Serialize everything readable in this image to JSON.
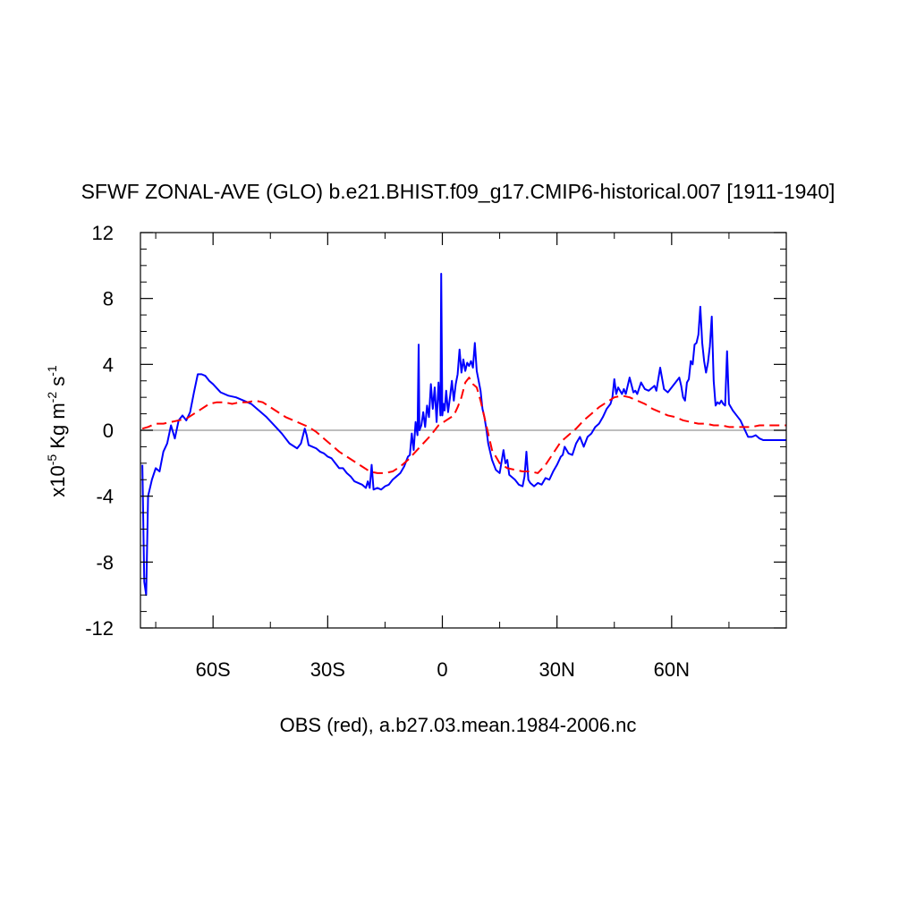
{
  "chart_data": {
    "type": "line",
    "title": "SFWF ZONAL-AVE (GLO) b.e21.BHIST.f09_g17.CMIP6-historical.007 [1911-1940]",
    "xlabel": "OBS (red), a.b27.03.mean.1984-2006.nc",
    "ylabel": {
      "prefix": "x10",
      "exp1": "-5",
      "mid": " Kg m",
      "exp2": "-2",
      "mid2": " s",
      "exp3": "-1"
    },
    "xlim": [
      -79,
      90
    ],
    "ylim": [
      -12,
      12
    ],
    "x_ticks": [
      {
        "value": -60,
        "label": "60S"
      },
      {
        "value": -30,
        "label": "30S"
      },
      {
        "value": 0,
        "label": "0"
      },
      {
        "value": 30,
        "label": "30N"
      },
      {
        "value": 60,
        "label": "60N"
      }
    ],
    "y_ticks": [
      {
        "value": 12,
        "label": "12"
      },
      {
        "value": 8,
        "label": "8"
      },
      {
        "value": 4,
        "label": "4"
      },
      {
        "value": 0,
        "label": "0"
      },
      {
        "value": -4,
        "label": "-4"
      },
      {
        "value": -8,
        "label": "-8"
      },
      {
        "value": -12,
        "label": "-12"
      }
    ],
    "zero_line": true,
    "series": [
      {
        "color": "#0000ff",
        "style": "solid",
        "x": [
          -78.5,
          -78,
          -77.5,
          -77,
          -76,
          -75,
          -74,
          -73,
          -72,
          -71,
          -70,
          -69,
          -68,
          -67,
          -66,
          -65,
          -64,
          -63,
          -62,
          -61,
          -60,
          -58,
          -56,
          -54,
          -52,
          -50,
          -48,
          -46,
          -44,
          -42,
          -40,
          -38,
          -37,
          -36,
          -35.5,
          -35,
          -34,
          -33,
          -32,
          -31,
          -30,
          -29,
          -28,
          -27,
          -26,
          -25,
          -24,
          -23,
          -22,
          -21,
          -20,
          -19.5,
          -19,
          -18.5,
          -18,
          -17,
          -16,
          -15,
          -14,
          -13,
          -12,
          -11,
          -10,
          -9,
          -8.5,
          -8,
          -7.5,
          -7,
          -6.5,
          -6.2,
          -6,
          -5.5,
          -5,
          -4.5,
          -4,
          -3.5,
          -3,
          -2.5,
          -2,
          -1.5,
          -1,
          -0.5,
          -0.3,
          0,
          0.3,
          0.6,
          1,
          1.5,
          2,
          2.5,
          3,
          3.5,
          4,
          4.5,
          5,
          5.5,
          6,
          6.5,
          7,
          7.5,
          8,
          8.5,
          9,
          9.5,
          10,
          10.5,
          11,
          11.5,
          12,
          13,
          14,
          15,
          16,
          16.5,
          17,
          17.5,
          18,
          19,
          20,
          21,
          21.5,
          22,
          22.5,
          23,
          24,
          25,
          26,
          27,
          28,
          29,
          30,
          31,
          31.5,
          32,
          33,
          34,
          35,
          36,
          37,
          38,
          39,
          40,
          41,
          42,
          43,
          44,
          44.5,
          45,
          45.5,
          46,
          47,
          47.5,
          48,
          49,
          50,
          50.5,
          51,
          52,
          53,
          54,
          55,
          55.5,
          56,
          57,
          58,
          59,
          60,
          61,
          62,
          62.5,
          63,
          63.5,
          64,
          64.5,
          65,
          65.5,
          66,
          66.5,
          67,
          67.5,
          68,
          68.5,
          69,
          69.5,
          70,
          70.5,
          71,
          71.5,
          72,
          72.5,
          73,
          73.5,
          74,
          74.5,
          75,
          76,
          77,
          78,
          79,
          80,
          81,
          82,
          83,
          84,
          86,
          88,
          90
        ],
        "y": [
          -2.1,
          -9.2,
          -10,
          -4,
          -3,
          -2.3,
          -2.5,
          -1.3,
          -0.8,
          0.3,
          -0.5,
          0.6,
          0.9,
          0.6,
          1.1,
          2.3,
          3.4,
          3.4,
          3.3,
          3.0,
          2.8,
          2.3,
          2.1,
          2.0,
          1.8,
          1.6,
          1.2,
          0.8,
          0.3,
          -0.2,
          -0.8,
          -1.1,
          -0.8,
          0.1,
          -0.3,
          -0.9,
          -1.0,
          -1.1,
          -1.3,
          -1.4,
          -1.6,
          -1.7,
          -2.0,
          -2.3,
          -2.3,
          -2.6,
          -2.8,
          -3.1,
          -3.2,
          -3.3,
          -3.5,
          -3.1,
          -3.5,
          -2.1,
          -3.6,
          -3.5,
          -3.6,
          -3.4,
          -3.3,
          -3.0,
          -2.8,
          -2.6,
          -2.2,
          -1.6,
          -1.5,
          -0.2,
          -1.2,
          0.5,
          -0.3,
          5.2,
          0.0,
          0.3,
          1.1,
          0.2,
          1.5,
          0.8,
          2.8,
          1.3,
          2.6,
          0.5,
          2.9,
          0.9,
          9.5,
          0.9,
          1.6,
          1.2,
          2.4,
          1.1,
          2.0,
          3.0,
          1.8,
          2.8,
          3.4,
          4.9,
          3.5,
          4.3,
          3.6,
          4.1,
          3.9,
          4.2,
          3.8,
          5.3,
          3.6,
          3.0,
          2.4,
          1.3,
          0.8,
          0.1,
          -0.8,
          -1.8,
          -2.4,
          -2.6,
          -1.2,
          -2.0,
          -1.8,
          -2.7,
          -2.8,
          -3.0,
          -3.3,
          -3.4,
          -2.8,
          -1.3,
          -3.0,
          -3.2,
          -3.4,
          -3.2,
          -3.3,
          -2.9,
          -3.0,
          -2.5,
          -2.1,
          -1.6,
          -1.5,
          -1.0,
          -1.4,
          -1.5,
          -0.8,
          -0.4,
          -1.0,
          -0.4,
          -0.2,
          0.2,
          0.4,
          0.8,
          1.3,
          1.6,
          2.0,
          3.1,
          2.2,
          2.6,
          2.2,
          2.5,
          2.2,
          3.2,
          2.3,
          2.4,
          2.2,
          2.9,
          2.5,
          2.4,
          2.6,
          2.7,
          2.4,
          3.8,
          2.5,
          2.3,
          2.6,
          2.9,
          3.2,
          2.7,
          2.0,
          1.8,
          2.9,
          3.1,
          4.2,
          4.0,
          5.2,
          5.3,
          5.8,
          7.5,
          5.3,
          4.2,
          3.5,
          4.1,
          5.1,
          6.9,
          3.0,
          1.5,
          1.7,
          1.6,
          1.8,
          1.6,
          1.5,
          4.8,
          1.6,
          1.2,
          0.9,
          0.6,
          0.1,
          -0.4,
          -0.4,
          -0.3,
          -0.5,
          -0.6,
          -0.6,
          -0.6,
          -0.6
        ]
      },
      {
        "color": "#ff0000",
        "style": "dashed",
        "x": [
          -78.5,
          -77,
          -75,
          -73,
          -71,
          -69,
          -67,
          -65,
          -63,
          -61,
          -59,
          -57,
          -55,
          -53,
          -51,
          -49,
          -47,
          -45,
          -43,
          -41,
          -39,
          -37,
          -35,
          -33,
          -31,
          -29,
          -27,
          -25,
          -23,
          -21,
          -19,
          -17,
          -15,
          -13,
          -11,
          -9,
          -7,
          -5,
          -3,
          -1,
          1,
          3,
          4,
          5,
          6,
          7,
          8,
          9,
          10,
          11,
          12,
          13,
          15,
          17,
          19,
          21,
          23,
          25,
          27,
          29,
          31,
          33,
          35,
          37,
          39,
          41,
          43,
          45,
          47,
          49,
          51,
          53,
          55,
          57,
          59,
          61,
          63,
          65,
          67,
          69,
          71,
          73,
          75,
          77,
          79,
          81,
          83,
          85,
          87,
          90
        ],
        "y": [
          0.1,
          0.2,
          0.4,
          0.4,
          0.5,
          0.6,
          0.7,
          1.0,
          1.3,
          1.6,
          1.7,
          1.7,
          1.6,
          1.7,
          1.7,
          1.8,
          1.7,
          1.4,
          1.1,
          0.8,
          0.6,
          0.4,
          0.2,
          -0.1,
          -0.5,
          -0.9,
          -1.3,
          -1.6,
          -1.9,
          -2.2,
          -2.5,
          -2.6,
          -2.6,
          -2.5,
          -2.2,
          -1.8,
          -1.3,
          -0.8,
          -0.3,
          0.3,
          0.6,
          0.9,
          1.4,
          2.0,
          2.9,
          3.2,
          2.8,
          2.6,
          1.8,
          0.8,
          -0.2,
          -1.2,
          -2.0,
          -2.3,
          -2.4,
          -2.5,
          -2.5,
          -2.6,
          -2.1,
          -1.4,
          -0.7,
          -0.3,
          0.1,
          0.6,
          1.0,
          1.4,
          1.7,
          2.0,
          2.1,
          2.0,
          1.8,
          1.6,
          1.3,
          1.1,
          0.9,
          0.8,
          0.6,
          0.5,
          0.4,
          0.4,
          0.3,
          0.3,
          0.2,
          0.2,
          0.2,
          0.2,
          0.3,
          0.3,
          0.3,
          0.3
        ]
      }
    ]
  }
}
